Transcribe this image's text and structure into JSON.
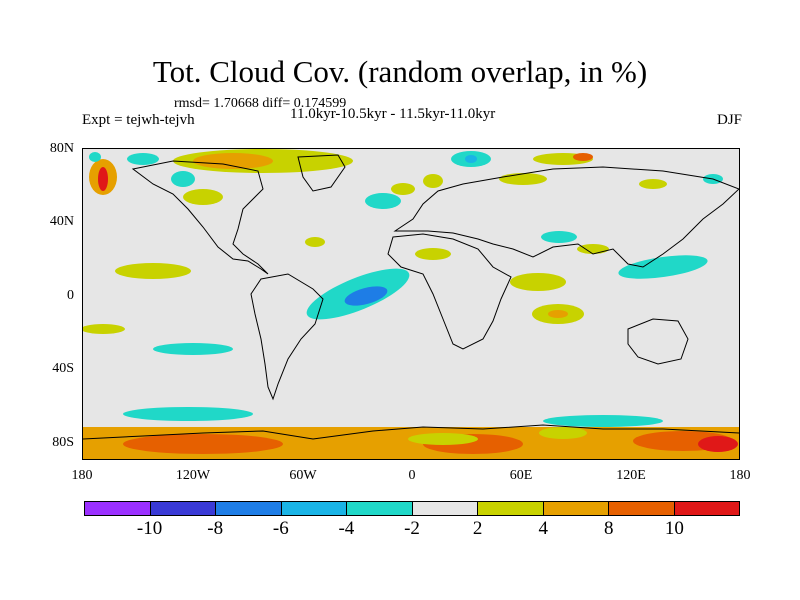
{
  "title": "Tot. Cloud Cov. (random overlap, in %)",
  "stats": "rmsd= 1.70668 diff= 0.174599",
  "experiment": "Expt = tejwh-tejvh",
  "period": "11.0kyr-10.5kyr - 11.5kyr-11.0kyr",
  "season": "DJF",
  "lat_labels": [
    "80N",
    "40N",
    "0",
    "40S",
    "80S"
  ],
  "lon_labels": [
    "180",
    "120W",
    "60W",
    "0",
    "60E",
    "120E",
    "180"
  ],
  "colorbar": {
    "colors": [
      "#9b30ff",
      "#3a3ad6",
      "#1e7de6",
      "#1ab4e6",
      "#20d8c8",
      "#e6e6e6",
      "#c8d200",
      "#e6a000",
      "#e66000",
      "#e01818"
    ],
    "labels": [
      "-10",
      "-8",
      "-6",
      "-4",
      "-2",
      "2",
      "4",
      "8",
      "10"
    ]
  }
}
